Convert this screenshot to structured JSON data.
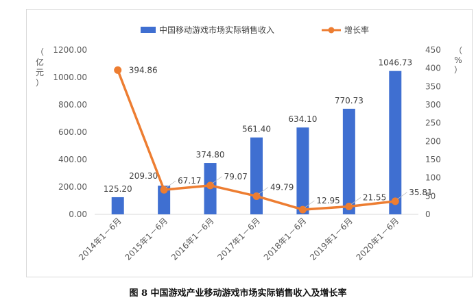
{
  "caption": "图 8 中国游戏产业移动游戏市场实际销售收入及增长率",
  "chart_data": {
    "type": "bar",
    "categories": [
      "2014年1－6月",
      "2015年1－6月",
      "2016年1－6月",
      "2017年1－6月",
      "2018年1－6月",
      "2019年1－6月",
      "2020年1－6月"
    ],
    "series": [
      {
        "name": "中国移动游戏市场实际销售收入",
        "type": "bar",
        "axis": "left",
        "color": "#3f6fd1",
        "values": [
          125.2,
          209.3,
          374.8,
          561.4,
          634.1,
          770.73,
          1046.73
        ],
        "labels": [
          "125.20",
          "209.30",
          "374.80",
          "561.40",
          "634.10",
          "770.73",
          "1046.73"
        ]
      },
      {
        "name": "增长率",
        "type": "line",
        "axis": "right",
        "color": "#ed7d31",
        "values": [
          394.86,
          67.17,
          79.07,
          49.79,
          12.95,
          21.55,
          35.81
        ],
        "labels": [
          "394.86",
          "67.17",
          "79.07",
          "49.79",
          "12.95",
          "21.55",
          "35.81"
        ]
      }
    ],
    "y_left": {
      "label": [
        "（",
        "亿",
        "元",
        "）"
      ],
      "ylim": [
        0,
        1200
      ],
      "ticks": [
        "0.00",
        "200.00",
        "400.00",
        "600.00",
        "800.00",
        "1000.00",
        "1200.00"
      ]
    },
    "y_right": {
      "label": [
        "（",
        "%",
        "）"
      ],
      "ylim": [
        0,
        450
      ],
      "ticks": [
        "0",
        "50",
        "100",
        "150",
        "200",
        "250",
        "300",
        "350",
        "400",
        "450"
      ]
    },
    "legend_position": "top-center",
    "grid": false
  }
}
